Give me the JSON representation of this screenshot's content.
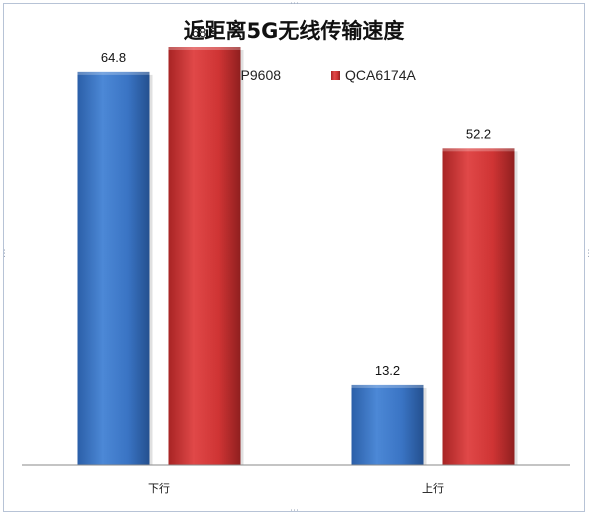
{
  "chart_data": {
    "type": "bar",
    "title": "近距离5G无线传输速度",
    "categories": [
      "下行",
      "上行"
    ],
    "series": [
      {
        "name": "EDUP9608",
        "values": [
          64.8,
          13.2
        ],
        "color": "#3a74c4"
      },
      {
        "name": "QCA6174A",
        "values": [
          68.9,
          52.2
        ],
        "color": "#cf3434"
      }
    ],
    "ylim": [
      0,
      75
    ],
    "grid": false,
    "legend": "top",
    "xlabel": "",
    "ylabel": ""
  }
}
